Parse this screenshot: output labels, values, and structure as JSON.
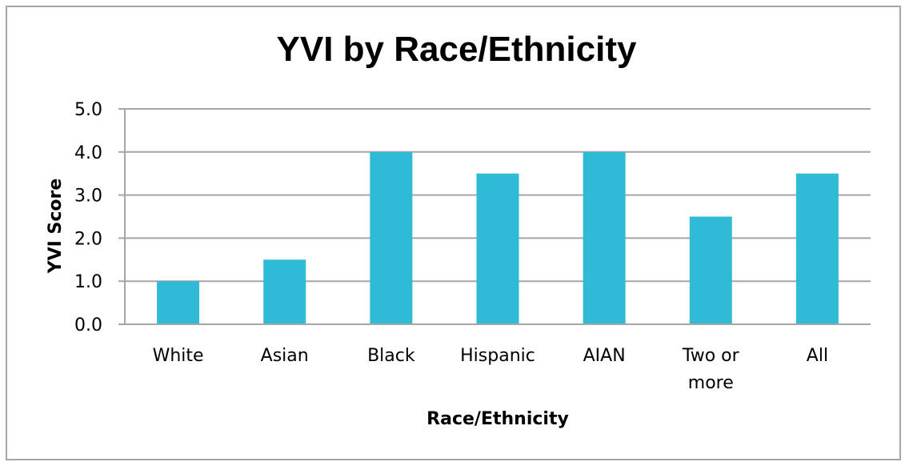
{
  "chart_data": {
    "type": "bar",
    "title": "YVI by Race/Ethnicity",
    "xlabel": "Race/Ethnicity",
    "ylabel": "YVI Score",
    "categories": [
      [
        "White"
      ],
      [
        "Asian"
      ],
      [
        "Black"
      ],
      [
        "Hispanic"
      ],
      [
        "AIAN"
      ],
      [
        "Two or",
        "more"
      ],
      [
        "All"
      ]
    ],
    "values": [
      1.0,
      1.5,
      4.0,
      3.5,
      4.0,
      2.5,
      3.5
    ],
    "ylim": [
      0,
      5
    ],
    "yticks": [
      "0.0",
      "1.0",
      "2.0",
      "3.0",
      "4.0",
      "5.0"
    ],
    "grid": true,
    "legend": "none",
    "bar_color": "#2fbad6",
    "grid_color": "#a6a6a6"
  }
}
